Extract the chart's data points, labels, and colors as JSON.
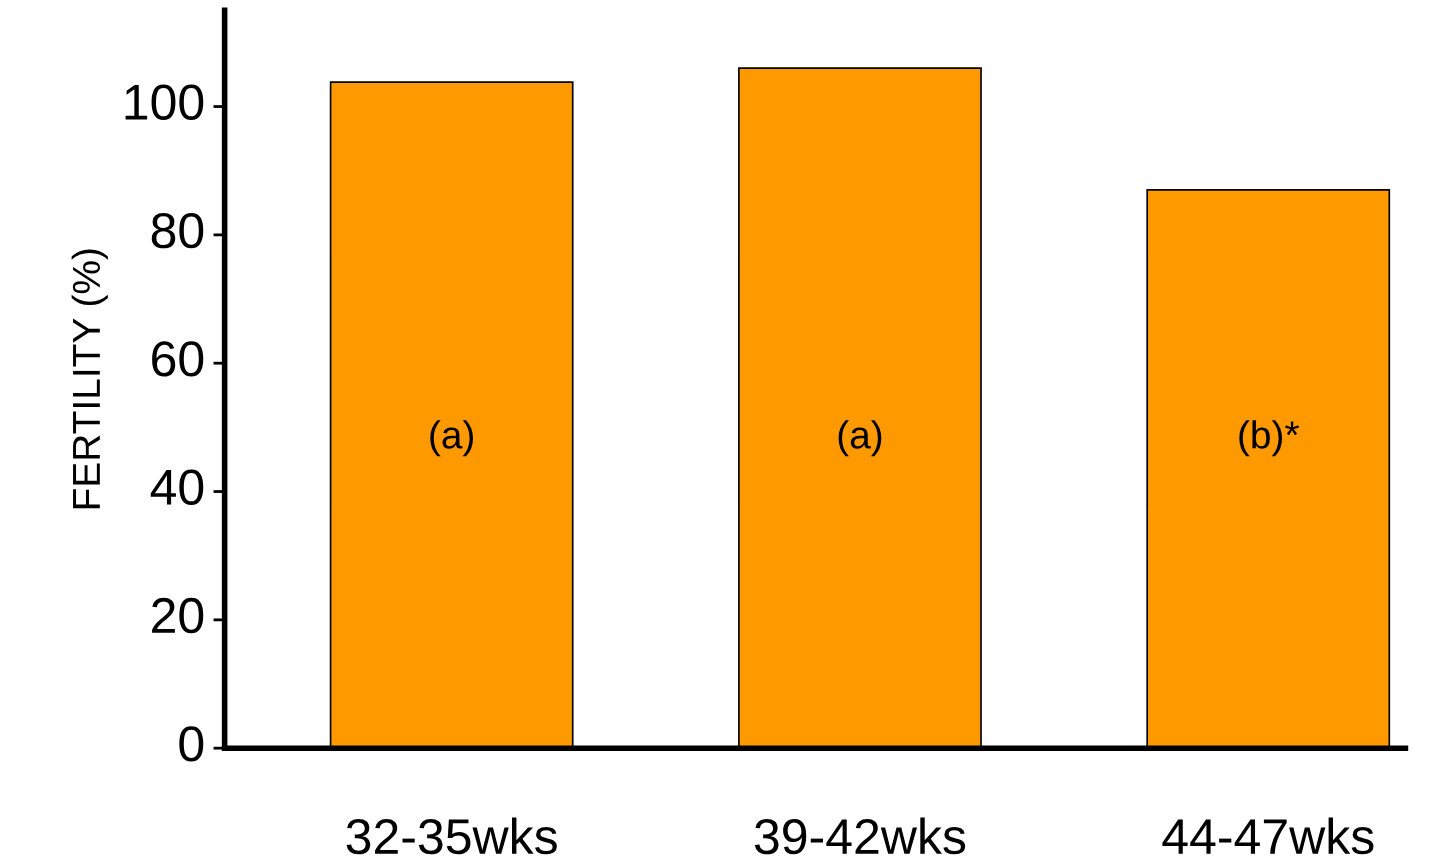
{
  "chart_data": {
    "type": "bar",
    "ylabel": "FERTILITY (%)",
    "categories": [
      "32-35wks",
      "39-42wks",
      "44-47wks"
    ],
    "values": [
      103.8,
      106,
      87
    ],
    "color": "#ff9900",
    "ylim": [
      0,
      115
    ],
    "yticks": [
      0,
      20,
      40,
      60,
      80,
      100
    ],
    "grid": false,
    "annotations": [
      "(a)",
      "(a)",
      "(b)*"
    ]
  }
}
